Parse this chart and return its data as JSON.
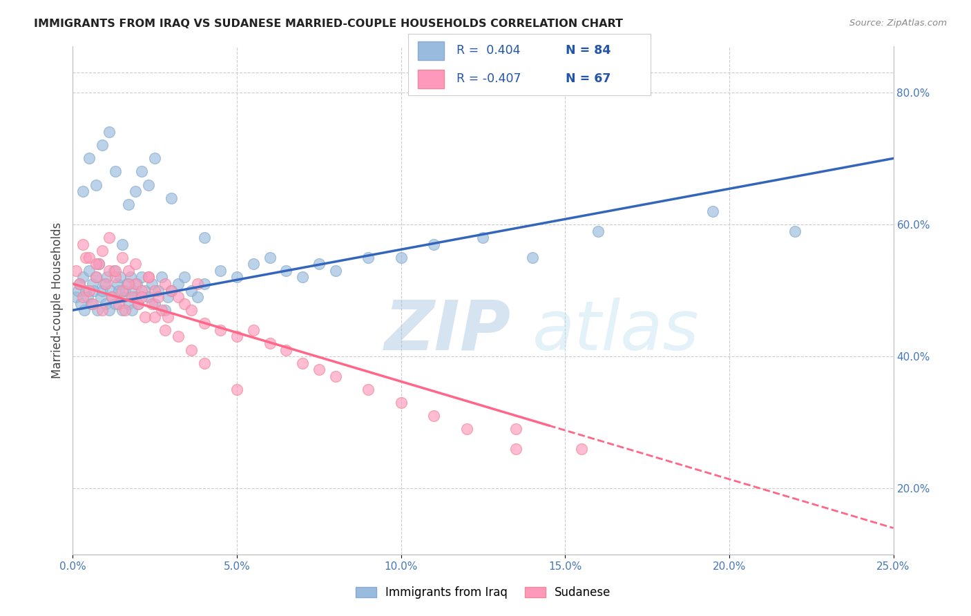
{
  "title": "IMMIGRANTS FROM IRAQ VS SUDANESE MARRIED-COUPLE HOUSEHOLDS CORRELATION CHART",
  "source": "Source: ZipAtlas.com",
  "ylabel": "Married-couple Households",
  "legend_label1": "Immigrants from Iraq",
  "legend_label2": "Sudanese",
  "blue_color": "#99BBDD",
  "pink_color": "#FF99BB",
  "blue_scatter_edge": "#88AACC",
  "pink_scatter_edge": "#EE8899",
  "blue_line_color": "#3366BB",
  "pink_line_color": "#FF6688",
  "background_color": "#FFFFFF",
  "grid_color": "#CCCCCC",
  "xlim": [
    0.0,
    25.0
  ],
  "ylim": [
    10.0,
    87.0
  ],
  "blue_line_x0": 0.0,
  "blue_line_y0": 47.0,
  "blue_line_x1": 25.0,
  "blue_line_y1": 70.0,
  "pink_line_x0": 0.0,
  "pink_line_y0": 51.0,
  "pink_line_x1": 25.0,
  "pink_line_y1": 14.0,
  "pink_solid_end": 14.5,
  "iraq_x": [
    0.1,
    0.15,
    0.2,
    0.25,
    0.3,
    0.35,
    0.4,
    0.45,
    0.5,
    0.55,
    0.6,
    0.65,
    0.7,
    0.75,
    0.8,
    0.85,
    0.9,
    0.95,
    1.0,
    1.05,
    1.1,
    1.15,
    1.2,
    1.25,
    1.3,
    1.35,
    1.4,
    1.45,
    1.5,
    1.55,
    1.6,
    1.65,
    1.7,
    1.75,
    1.8,
    1.85,
    1.9,
    1.95,
    2.0,
    2.1,
    2.2,
    2.3,
    2.4,
    2.5,
    2.6,
    2.7,
    2.8,
    2.9,
    3.0,
    3.2,
    3.4,
    3.6,
    3.8,
    4.0,
    4.5,
    5.0,
    5.5,
    6.0,
    6.5,
    7.0,
    7.5,
    8.0,
    9.0,
    10.0,
    11.0,
    12.5,
    14.0,
    16.0,
    19.5,
    22.0,
    0.3,
    0.5,
    0.7,
    0.9,
    1.1,
    1.3,
    1.5,
    1.7,
    1.9,
    2.1,
    2.3,
    2.5,
    3.0,
    4.0
  ],
  "iraq_y": [
    49,
    50,
    51,
    48,
    52,
    47,
    50,
    49,
    53,
    48,
    51,
    50,
    52,
    47,
    54,
    49,
    50,
    51,
    48,
    52,
    47,
    50,
    49,
    53,
    48,
    51,
    50,
    52,
    47,
    49,
    50,
    51,
    48,
    52,
    47,
    50,
    49,
    51,
    48,
    52,
    50,
    49,
    51,
    48,
    50,
    52,
    47,
    49,
    50,
    51,
    52,
    50,
    49,
    51,
    53,
    52,
    54,
    55,
    53,
    52,
    54,
    53,
    55,
    55,
    57,
    58,
    55,
    59,
    62,
    59,
    65,
    70,
    66,
    72,
    74,
    68,
    57,
    63,
    65,
    68,
    66,
    70,
    64,
    58
  ],
  "sudanese_x": [
    0.1,
    0.2,
    0.3,
    0.4,
    0.5,
    0.6,
    0.7,
    0.8,
    0.9,
    1.0,
    1.1,
    1.2,
    1.3,
    1.4,
    1.5,
    1.6,
    1.7,
    1.8,
    1.9,
    2.0,
    2.1,
    2.2,
    2.3,
    2.4,
    2.5,
    2.6,
    2.7,
    2.8,
    2.9,
    3.0,
    3.2,
    3.4,
    3.6,
    3.8,
    4.0,
    4.5,
    5.0,
    5.5,
    6.0,
    6.5,
    7.0,
    7.5,
    8.0,
    9.0,
    10.0,
    11.0,
    12.0,
    13.5,
    0.3,
    0.5,
    0.7,
    0.9,
    1.1,
    1.3,
    1.5,
    1.7,
    1.9,
    2.1,
    2.3,
    2.5,
    2.8,
    3.2,
    3.6,
    4.0,
    5.0,
    13.5,
    15.5
  ],
  "sudanese_y": [
    53,
    51,
    49,
    55,
    50,
    48,
    52,
    54,
    47,
    51,
    53,
    49,
    52,
    48,
    50,
    47,
    53,
    49,
    51,
    48,
    50,
    46,
    52,
    48,
    50,
    49,
    47,
    51,
    46,
    50,
    49,
    48,
    47,
    51,
    45,
    44,
    43,
    44,
    42,
    41,
    39,
    38,
    37,
    35,
    33,
    31,
    29,
    26,
    57,
    55,
    54,
    56,
    58,
    53,
    55,
    51,
    54,
    49,
    52,
    46,
    44,
    43,
    41,
    39,
    35,
    29,
    26
  ],
  "watermark_text1": "ZIP",
  "watermark_text2": "atlas"
}
